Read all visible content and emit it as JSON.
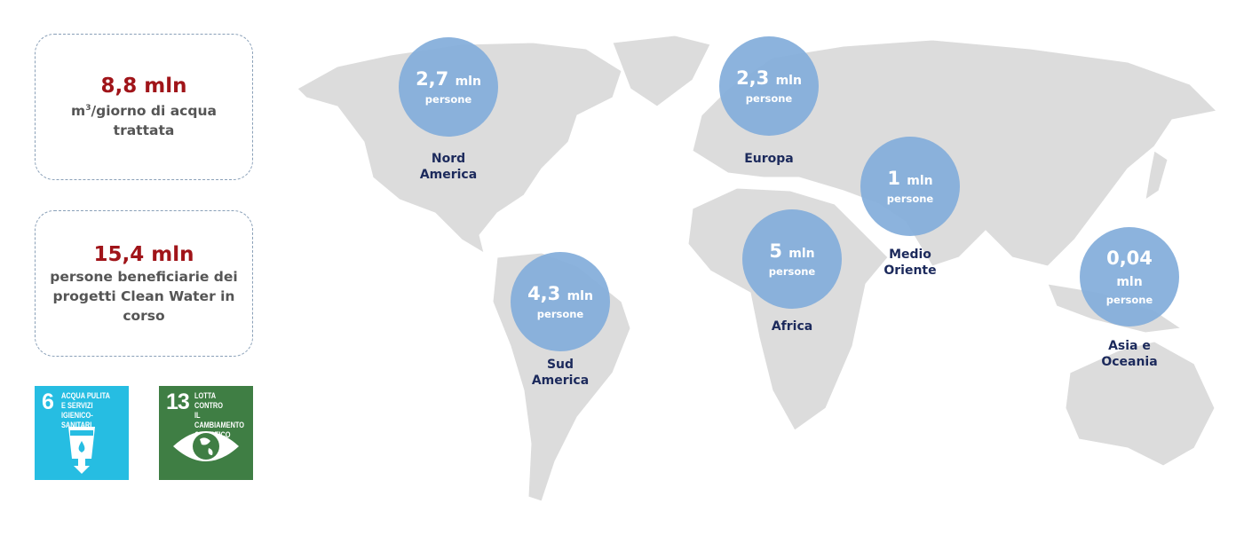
{
  "stats": [
    {
      "value": "8,8 mln",
      "description_prefix": "m",
      "description_sup": "3",
      "description": "/giorno di acqua trattata"
    },
    {
      "value": "15,4 mln",
      "description": "persone beneficiarie dei progetti Clean Water in corso"
    }
  ],
  "sdg": [
    {
      "number": "6",
      "title": "ACQUA PULITA\nE SERVIZI\nIGIENICO-SANITARI",
      "color": "#26bde2",
      "icon": "water-glass-icon"
    },
    {
      "number": "13",
      "title": "LOTTA CONTRO\nIL CAMBIAMENTO\nCLIMATICO",
      "color": "#3f7e44",
      "icon": "earth-eye-icon"
    }
  ],
  "regions": [
    {
      "value": "2,7",
      "unit": "mln",
      "people": "persone",
      "name": "Nord America"
    },
    {
      "value": "2,3",
      "unit": "mln",
      "people": "persone",
      "name": "Europa"
    },
    {
      "value": "1",
      "unit": "mln",
      "people": "persone",
      "name": "Medio Oriente"
    },
    {
      "value": "5",
      "unit": "mln",
      "people": "persone",
      "name": "Africa"
    },
    {
      "value": "4,3",
      "unit": "mln",
      "people": "persone",
      "name": "Sud America"
    },
    {
      "value": "0,04",
      "unit": "mln",
      "people": "persone",
      "name": "Asia e Oceania"
    }
  ],
  "colors": {
    "accent": "#a01419",
    "bubble": "#82acda",
    "label": "#1c2a5c",
    "land": "#dcdcdc"
  }
}
